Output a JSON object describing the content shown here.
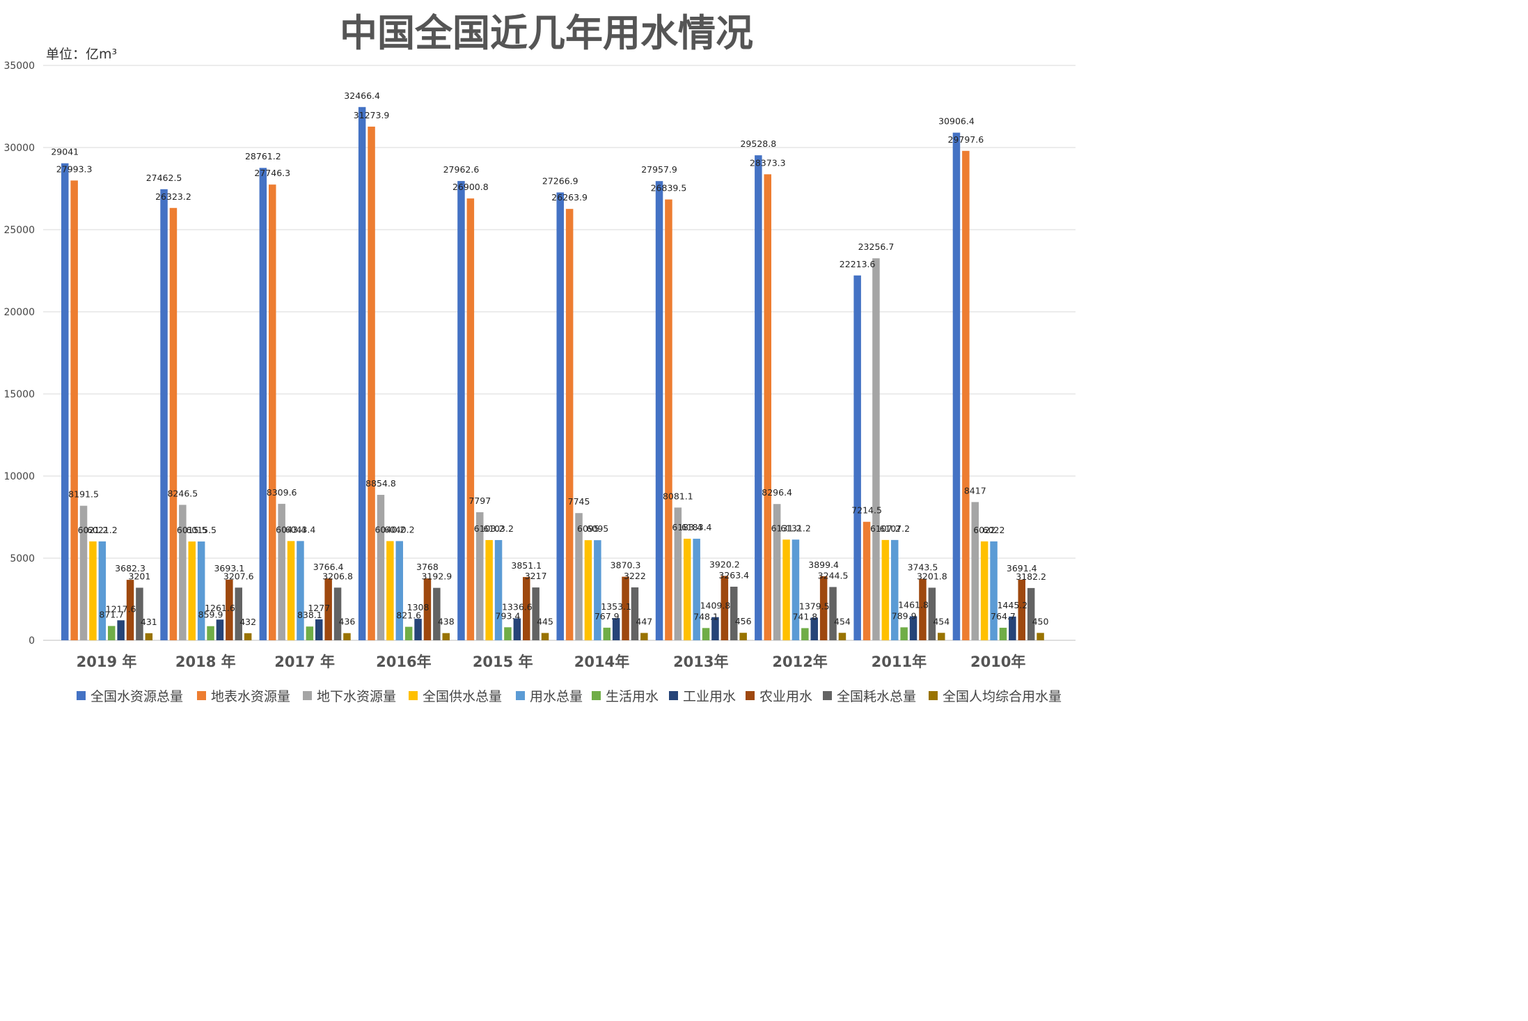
{
  "chart_data": {
    "type": "bar",
    "title": "中国全国近几年用水情况",
    "unit_label": "单位：亿m³",
    "xlabel": "",
    "ylabel": "",
    "ylim": [
      0,
      35000
    ],
    "yticks": [
      0,
      5000,
      10000,
      15000,
      20000,
      25000,
      30000,
      35000
    ],
    "grid": true,
    "legend_position": "bottom",
    "categories": [
      "2019 年",
      "2018 年",
      "2017 年",
      "2016年",
      "2015 年",
      "2014年",
      "2013年",
      "2012年",
      "2011年",
      "2010年"
    ],
    "series": [
      {
        "name": "全国水资源总量",
        "color": "#4472C4",
        "values": [
          29041,
          27462.5,
          28761.2,
          32466.4,
          27962.6,
          27266.9,
          27957.9,
          29528.8,
          22213.6,
          30906.4
        ]
      },
      {
        "name": "地表水资源量",
        "color": "#ED7D31",
        "values": [
          27993.3,
          26323.2,
          27746.3,
          31273.9,
          26900.8,
          26263.9,
          26839.5,
          28373.3,
          7214.5,
          29797.6
        ]
      },
      {
        "name": "地下水资源量",
        "color": "#A5A5A5",
        "values": [
          8191.5,
          8246.5,
          8309.6,
          8854.8,
          7797,
          7745,
          8081.1,
          8296.4,
          23256.7,
          8417
        ]
      },
      {
        "name": "全国供水总量",
        "color": "#FFC000",
        "values": [
          6021.2,
          6015.5,
          6043.4,
          6040.2,
          6103.2,
          6095,
          6183.4,
          6131.2,
          6107.2,
          6022
        ]
      },
      {
        "name": "用水总量",
        "color": "#5B9BD5",
        "values": [
          6021.2,
          6015.5,
          6043.4,
          6040.2,
          6103.2,
          6095,
          6183.4,
          6131.2,
          6107.2,
          6022
        ]
      },
      {
        "name": "生活用水",
        "color": "#70AD47",
        "values": [
          871.7,
          859.9,
          838.1,
          821.6,
          793.4,
          767.9,
          748.1,
          741.8,
          789.9,
          764.7
        ]
      },
      {
        "name": "工业用水",
        "color": "#264478",
        "values": [
          1217.6,
          1261.6,
          1277,
          1308,
          1336.6,
          1353.1,
          1409.8,
          1379.5,
          1461.8,
          1445.2
        ]
      },
      {
        "name": "农业用水",
        "color": "#9E480E",
        "values": [
          3682.3,
          3693.1,
          3766.4,
          3768,
          3851.1,
          3870.3,
          3920.2,
          3899.4,
          3743.5,
          3691.4
        ]
      },
      {
        "name": "全国耗水总量",
        "color": "#636363",
        "values": [
          3201,
          3207.6,
          3206.8,
          3192.9,
          3217,
          3222,
          3263.4,
          3244.5,
          3201.8,
          3182.2
        ]
      },
      {
        "name": "全国人均综合用水量",
        "color": "#997300",
        "values": [
          431,
          432,
          436,
          438,
          445,
          447,
          456,
          454,
          454,
          450
        ]
      }
    ]
  }
}
